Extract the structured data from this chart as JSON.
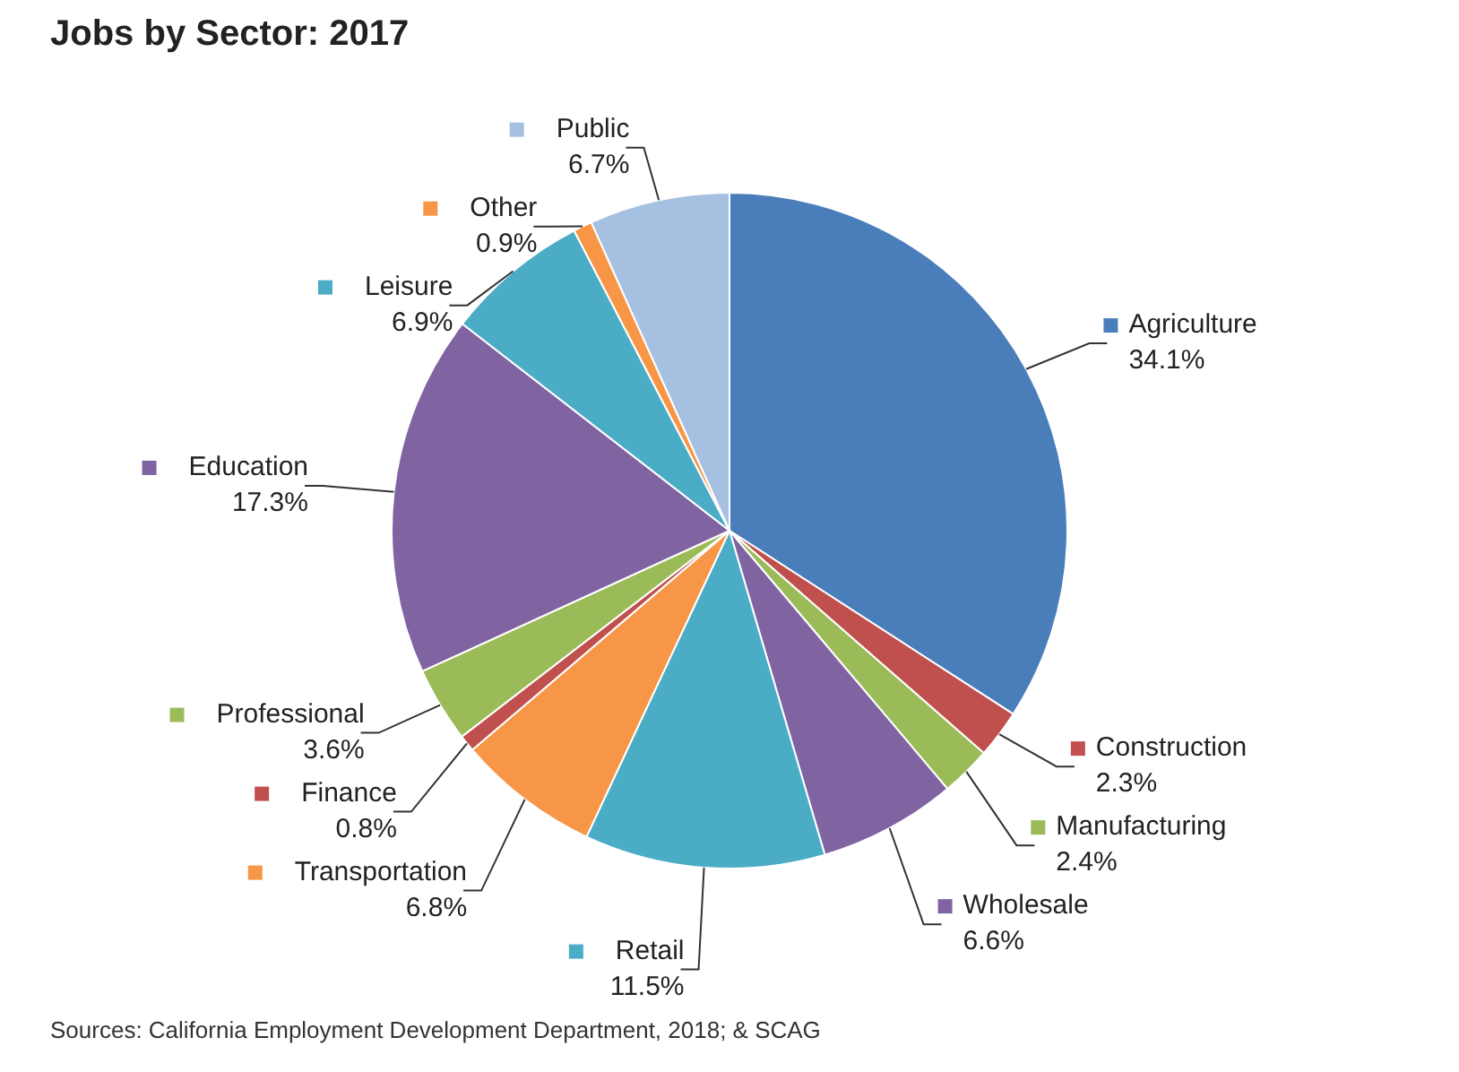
{
  "chart_data": {
    "type": "pie",
    "title": "Jobs by Sector: 2017",
    "categories": [
      "Agriculture",
      "Construction",
      "Manufacturing",
      "Wholesale",
      "Retail",
      "Transportation",
      "Finance",
      "Professional",
      "Education",
      "Leisure",
      "Other",
      "Public"
    ],
    "values": [
      34.1,
      2.3,
      2.4,
      6.6,
      11.5,
      6.8,
      0.8,
      3.6,
      17.3,
      6.9,
      0.9,
      6.7
    ],
    "value_labels": [
      "34.1%",
      "2.3%",
      "2.4%",
      "6.6%",
      "11.5%",
      "6.8%",
      "0.8%",
      "3.6%",
      "17.3%",
      "6.9%",
      "0.9%",
      "6.7%"
    ],
    "colors": [
      "#4a7ebb",
      "#c0504d",
      "#9bbb59",
      "#8064a2",
      "#4bacc6",
      "#f79646",
      "#c0504d",
      "#9bbb59",
      "#8064a2",
      "#4bacc6",
      "#f79646",
      "#a5c0e0"
    ],
    "legend": "right",
    "annotations": [
      "Sources: California Employment Development Department, 2018; & SCAG"
    ]
  }
}
